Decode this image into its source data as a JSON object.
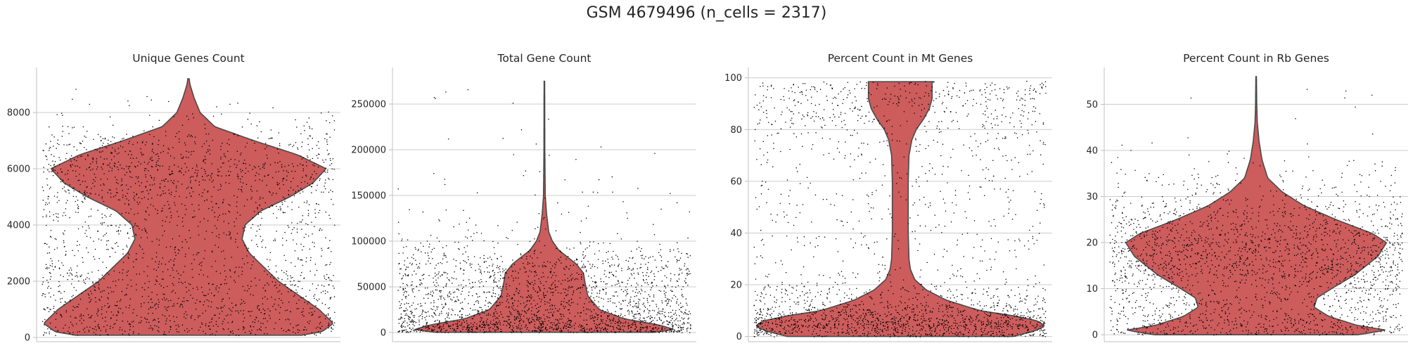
{
  "figure": {
    "title": "GSM 4679496 (n_cells = 2317)",
    "violin_color": "#cd5c5c",
    "point_color": "#000000"
  },
  "chart_data": [
    {
      "type": "violin",
      "title": "Unique Genes Count",
      "xlabel": "",
      "ylabel": "",
      "ylim": [
        -150,
        9600
      ],
      "yticks": [
        0,
        2000,
        4000,
        6000,
        8000
      ],
      "grid": true,
      "data_range": [
        80,
        9200
      ],
      "density": [
        [
          80,
          0.78
        ],
        [
          200,
          0.92
        ],
        [
          500,
          1.0
        ],
        [
          1000,
          0.9
        ],
        [
          2000,
          0.62
        ],
        [
          3000,
          0.42
        ],
        [
          3500,
          0.37
        ],
        [
          4000,
          0.39
        ],
        [
          4500,
          0.5
        ],
        [
          5000,
          0.7
        ],
        [
          5500,
          0.86
        ],
        [
          6000,
          0.95
        ],
        [
          6500,
          0.75
        ],
        [
          7000,
          0.45
        ],
        [
          7500,
          0.18
        ],
        [
          8000,
          0.08
        ],
        [
          8500,
          0.04
        ],
        [
          9000,
          0.01
        ],
        [
          9200,
          0.005
        ]
      ]
    },
    {
      "type": "violin",
      "title": "Total Gene Count",
      "xlabel": "",
      "ylabel": "",
      "ylim": [
        -10000,
        290000
      ],
      "yticks": [
        0,
        50000,
        100000,
        150000,
        200000,
        250000
      ],
      "grid": true,
      "data_range": [
        200,
        275000
      ],
      "density": [
        [
          200,
          0.75
        ],
        [
          3000,
          0.9
        ],
        [
          8000,
          0.8
        ],
        [
          15000,
          0.55
        ],
        [
          25000,
          0.38
        ],
        [
          40000,
          0.3
        ],
        [
          55000,
          0.28
        ],
        [
          65000,
          0.27
        ],
        [
          75000,
          0.22
        ],
        [
          90000,
          0.1
        ],
        [
          100000,
          0.055
        ],
        [
          110000,
          0.03
        ],
        [
          130000,
          0.015
        ],
        [
          150000,
          0.006
        ],
        [
          200000,
          0.003
        ],
        [
          275000,
          0.002
        ]
      ]
    },
    {
      "type": "violin",
      "title": "Percent Count in Mt Genes",
      "xlabel": "",
      "ylabel": "",
      "ylim": [
        -2,
        104
      ],
      "yticks": [
        0,
        20,
        40,
        60,
        80,
        100
      ],
      "grid": true,
      "data_range": [
        0,
        98.5
      ],
      "density": [
        [
          0,
          0.78
        ],
        [
          2,
          0.92
        ],
        [
          4,
          1.0
        ],
        [
          6,
          0.95
        ],
        [
          8,
          0.78
        ],
        [
          10,
          0.55
        ],
        [
          14,
          0.32
        ],
        [
          18,
          0.18
        ],
        [
          22,
          0.1
        ],
        [
          26,
          0.07
        ],
        [
          30,
          0.06
        ],
        [
          40,
          0.055
        ],
        [
          50,
          0.055
        ],
        [
          60,
          0.055
        ],
        [
          70,
          0.06
        ],
        [
          76,
          0.08
        ],
        [
          80,
          0.11
        ],
        [
          84,
          0.16
        ],
        [
          88,
          0.2
        ],
        [
          92,
          0.22
        ],
        [
          96,
          0.22
        ],
        [
          98.5,
          0.22
        ]
      ]
    },
    {
      "type": "violin",
      "title": "Percent Count in Rb Genes",
      "xlabel": "",
      "ylabel": "",
      "ylim": [
        -1.5,
        58
      ],
      "yticks": [
        0,
        10,
        20,
        30,
        40,
        50
      ],
      "grid": true,
      "data_range": [
        0,
        56
      ],
      "density": [
        [
          0,
          0.7
        ],
        [
          1,
          0.9
        ],
        [
          2,
          0.7
        ],
        [
          4,
          0.5
        ],
        [
          6,
          0.4
        ],
        [
          8,
          0.42
        ],
        [
          10,
          0.52
        ],
        [
          13,
          0.68
        ],
        [
          17,
          0.84
        ],
        [
          20,
          0.9
        ],
        [
          22,
          0.8
        ],
        [
          25,
          0.55
        ],
        [
          28,
          0.33
        ],
        [
          31,
          0.18
        ],
        [
          34,
          0.08
        ],
        [
          38,
          0.04
        ],
        [
          42,
          0.02
        ],
        [
          46,
          0.008
        ],
        [
          50,
          0.004
        ],
        [
          56,
          0.002
        ]
      ]
    }
  ]
}
